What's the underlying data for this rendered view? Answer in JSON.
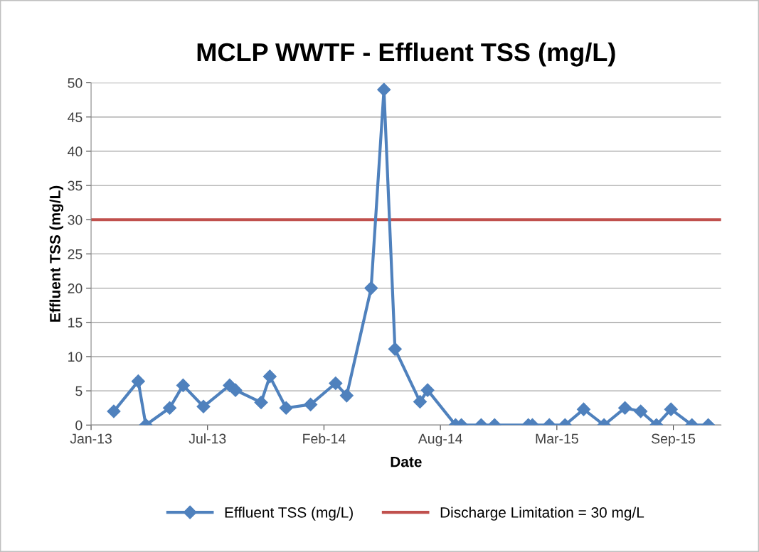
{
  "chart_data": {
    "type": "line",
    "title": "MCLP WWTF - Effluent TSS (mg/L)",
    "xlabel": "Date",
    "ylabel": "Effluent TSS (mg/L)",
    "x": [
      "2013-02-09",
      "2013-03-23",
      "2013-04-05",
      "2013-05-16",
      "2013-06-08",
      "2013-07-13",
      "2013-08-27",
      "2013-09-06",
      "2013-10-20",
      "2013-11-04",
      "2013-12-02",
      "2014-01-13",
      "2014-02-25",
      "2014-03-16",
      "2014-04-27",
      "2014-05-19",
      "2014-06-07",
      "2014-07-20",
      "2014-08-02",
      "2014-09-19",
      "2014-09-29",
      "2014-11-02",
      "2014-11-25",
      "2015-01-22",
      "2015-01-29",
      "2015-02-27",
      "2015-03-26",
      "2015-04-27",
      "2015-06-01",
      "2015-07-07",
      "2015-08-03",
      "2015-08-30",
      "2015-09-24",
      "2015-10-30",
      "2015-11-27"
    ],
    "series": [
      {
        "name": "Effluent TSS (mg/L)",
        "color": "#4f81bd",
        "values": [
          2.0,
          6.4,
          0,
          2.5,
          5.8,
          2.7,
          5.8,
          5.1,
          3.3,
          7.1,
          2.5,
          3.0,
          6.1,
          4.3,
          20,
          49,
          11.1,
          3.4,
          5.1,
          0,
          0,
          0,
          0,
          0,
          0,
          0,
          0,
          2.3,
          0,
          2.5,
          2.0,
          0,
          2.3,
          0,
          0
        ]
      }
    ],
    "ref_lines": [
      {
        "axis": "y",
        "value": 30,
        "label": "Discharge Limitation = 30 mg/L",
        "color": "#c0504d"
      }
    ],
    "xlim": [
      "2013-01-01",
      "2015-12-19"
    ],
    "xticks": [
      {
        "value": "2013-01-01",
        "label": "Jan-13"
      },
      {
        "value": "2013-07-20",
        "label": "Jul-13"
      },
      {
        "value": "2014-02-05",
        "label": "Feb-14"
      },
      {
        "value": "2014-08-24",
        "label": "Aug-14"
      },
      {
        "value": "2015-03-12",
        "label": "Mar-15"
      },
      {
        "value": "2015-09-28",
        "label": "Sep-15"
      }
    ],
    "ylim": [
      0,
      50
    ],
    "yticks": [
      0,
      5,
      10,
      15,
      20,
      25,
      30,
      35,
      40,
      45,
      50
    ],
    "grid": "y",
    "legend": "bottom",
    "marker": "diamond",
    "line_style": "solid"
  }
}
